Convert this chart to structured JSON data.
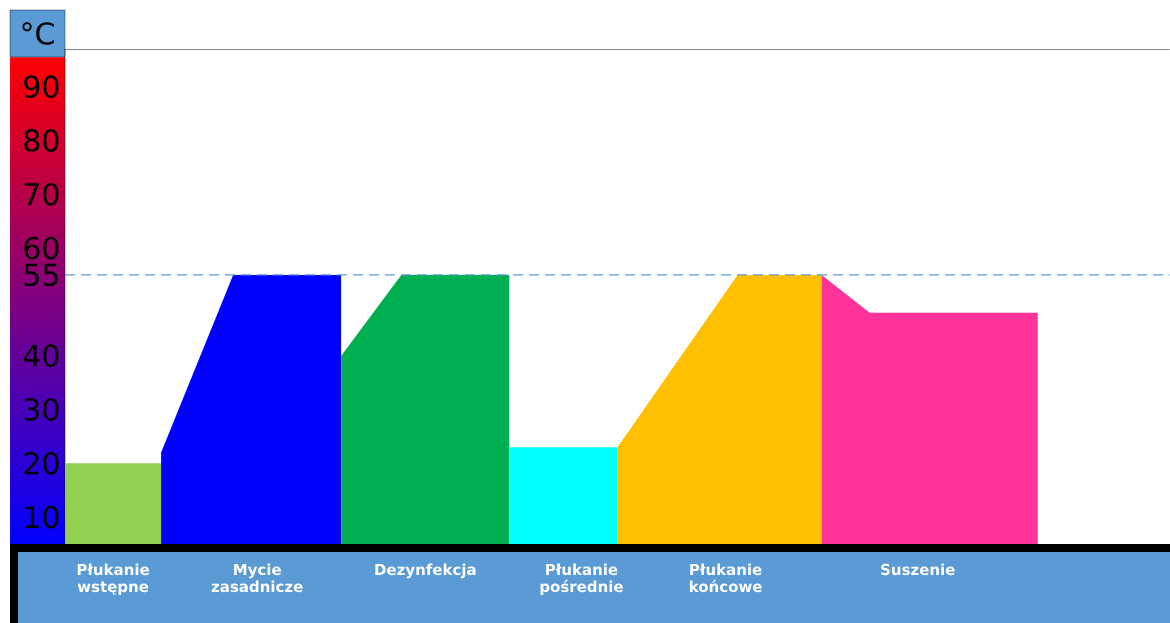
{
  "chart_data": {
    "type": "area",
    "ylabel": "°C",
    "categories": [
      null,
      null,
      null,
      null,
      "Płukanie wstępne",
      null,
      null,
      null,
      null,
      null,
      null,
      null,
      null,
      null,
      null,
      null,
      "Mycie zasadnicze",
      null,
      null,
      null,
      null,
      null,
      null,
      null,
      null,
      null,
      null,
      null,
      null,
      null,
      "Dezynfekcja",
      null,
      null,
      null,
      null,
      null,
      null,
      null,
      null,
      null,
      null,
      null,
      null,
      "Płukanie pośrednie",
      null,
      null,
      null,
      null,
      null,
      null,
      null,
      null,
      null,
      null,
      null,
      "Płukanie końcowe",
      null,
      null,
      null,
      null,
      null,
      null,
      null,
      null,
      null,
      null,
      null,
      null,
      null,
      null,
      null,
      "Suszenie",
      null,
      null,
      null,
      null,
      null,
      null,
      null,
      null,
      null,
      null,
      null,
      null,
      null,
      null,
      null,
      null,
      null,
      null,
      null,
      null,
      null
    ],
    "ylim": [
      5,
      97
    ],
    "yticks": [
      10,
      20,
      30,
      40,
      55,
      60,
      70,
      80,
      90
    ],
    "series": [
      {
        "color": "#92d050",
        "values": [
          20,
          null,
          null,
          null,
          null,
          null,
          null,
          null,
          20,
          null,
          null,
          null,
          null,
          null,
          null,
          null,
          null,
          null,
          null,
          null,
          null,
          null,
          null,
          null,
          null,
          null,
          null,
          null,
          null,
          null,
          null,
          null,
          null,
          null,
          null,
          null,
          null,
          null,
          null,
          null,
          null,
          null,
          null,
          null,
          null,
          null,
          null,
          null,
          null,
          null,
          null,
          null,
          null,
          null,
          null,
          null,
          null,
          null,
          null,
          null,
          null,
          null,
          null,
          null,
          null,
          null,
          null,
          null,
          null,
          null,
          null,
          null,
          null,
          null,
          null,
          null,
          null,
          null,
          null,
          null,
          null,
          null,
          null,
          null,
          null,
          null,
          null,
          null,
          null,
          null,
          null,
          null,
          null
        ]
      },
      {
        "color": "#0000ff",
        "values": [
          null,
          null,
          null,
          null,
          null,
          null,
          null,
          null,
          22,
          null,
          null,
          null,
          null,
          null,
          55,
          null,
          null,
          null,
          null,
          null,
          null,
          null,
          null,
          55,
          null,
          null,
          null,
          null,
          null,
          null,
          null,
          null,
          null,
          null,
          null,
          null,
          null,
          null,
          null,
          null,
          null,
          null,
          null,
          null,
          null,
          null,
          null,
          null,
          null,
          null,
          null,
          null,
          null,
          null,
          null,
          null,
          null,
          null,
          null,
          null,
          null,
          null,
          null,
          null,
          null,
          null,
          null,
          null,
          null,
          null,
          null,
          null,
          null,
          null,
          null,
          null,
          null,
          null,
          null,
          null,
          null,
          null,
          null,
          null,
          null,
          null,
          null,
          null,
          null,
          null,
          null,
          null,
          null
        ]
      },
      {
        "color": "#00b050",
        "values": [
          null,
          null,
          null,
          null,
          null,
          null,
          null,
          null,
          null,
          null,
          null,
          null,
          null,
          null,
          null,
          null,
          null,
          null,
          null,
          null,
          null,
          null,
          null,
          40,
          null,
          null,
          null,
          null,
          55,
          null,
          null,
          null,
          null,
          null,
          null,
          null,
          null,
          55,
          null,
          null,
          null,
          null,
          null,
          null,
          null,
          null,
          null,
          null,
          null,
          null,
          null,
          null,
          null,
          null,
          null,
          null,
          null,
          null,
          null,
          null,
          null,
          null,
          null,
          null,
          null,
          null,
          null,
          null,
          null,
          null,
          null,
          null,
          null,
          null,
          null,
          null,
          null,
          null,
          null,
          null,
          null,
          null,
          null,
          null,
          null,
          null,
          null,
          null,
          null,
          null,
          null,
          null,
          null
        ]
      },
      {
        "color": "#00ffff",
        "values": [
          null,
          null,
          null,
          null,
          null,
          null,
          null,
          null,
          null,
          null,
          null,
          null,
          null,
          null,
          null,
          null,
          null,
          null,
          null,
          null,
          null,
          null,
          null,
          null,
          null,
          null,
          null,
          null,
          null,
          null,
          null,
          null,
          null,
          null,
          null,
          null,
          null,
          23,
          null,
          null,
          null,
          null,
          null,
          null,
          null,
          null,
          23,
          null,
          null,
          null,
          null,
          null,
          null,
          null,
          null,
          null,
          null,
          null,
          null,
          null,
          null,
          null,
          null,
          null,
          null,
          null,
          null,
          null,
          null,
          null,
          null,
          null,
          null,
          null,
          null,
          null,
          null,
          null,
          null,
          null,
          null,
          null,
          null,
          null,
          null,
          null,
          null,
          null,
          null,
          null,
          null,
          null,
          null
        ]
      },
      {
        "color": "#ffc000",
        "values": [
          null,
          null,
          null,
          null,
          null,
          null,
          null,
          null,
          null,
          null,
          null,
          null,
          null,
          null,
          null,
          null,
          null,
          null,
          null,
          null,
          null,
          null,
          null,
          null,
          null,
          null,
          null,
          null,
          null,
          null,
          null,
          null,
          null,
          null,
          null,
          null,
          null,
          null,
          null,
          null,
          null,
          null,
          null,
          null,
          null,
          null,
          23,
          null,
          null,
          null,
          null,
          null,
          null,
          null,
          null,
          null,
          55,
          null,
          null,
          null,
          null,
          null,
          null,
          55,
          null,
          null,
          null,
          null,
          null,
          null,
          null,
          null,
          null,
          null,
          null,
          null,
          null,
          null,
          null,
          null,
          null,
          null,
          null,
          null,
          null,
          null,
          null,
          null,
          null,
          null,
          null,
          null,
          null
        ]
      },
      {
        "color": "#ff3399",
        "values": [
          null,
          null,
          null,
          null,
          null,
          null,
          null,
          null,
          null,
          null,
          null,
          null,
          null,
          null,
          null,
          null,
          null,
          null,
          null,
          null,
          null,
          null,
          null,
          null,
          null,
          null,
          null,
          null,
          null,
          null,
          null,
          null,
          null,
          null,
          null,
          null,
          null,
          null,
          null,
          null,
          null,
          null,
          null,
          null,
          null,
          null,
          null,
          null,
          null,
          null,
          null,
          null,
          null,
          null,
          null,
          null,
          null,
          null,
          null,
          null,
          null,
          null,
          null,
          55,
          null,
          null,
          null,
          48,
          null,
          null,
          null,
          null,
          null,
          null,
          null,
          null,
          null,
          null,
          null,
          null,
          null,
          48,
          null,
          null,
          null,
          null,
          null,
          null,
          null,
          null,
          null,
          null,
          null
        ]
      }
    ],
    "ref_lines": [
      {
        "axis": "y",
        "value": 55,
        "color": "#5b9bd5",
        "line_style": "dashed"
      }
    ]
  }
}
